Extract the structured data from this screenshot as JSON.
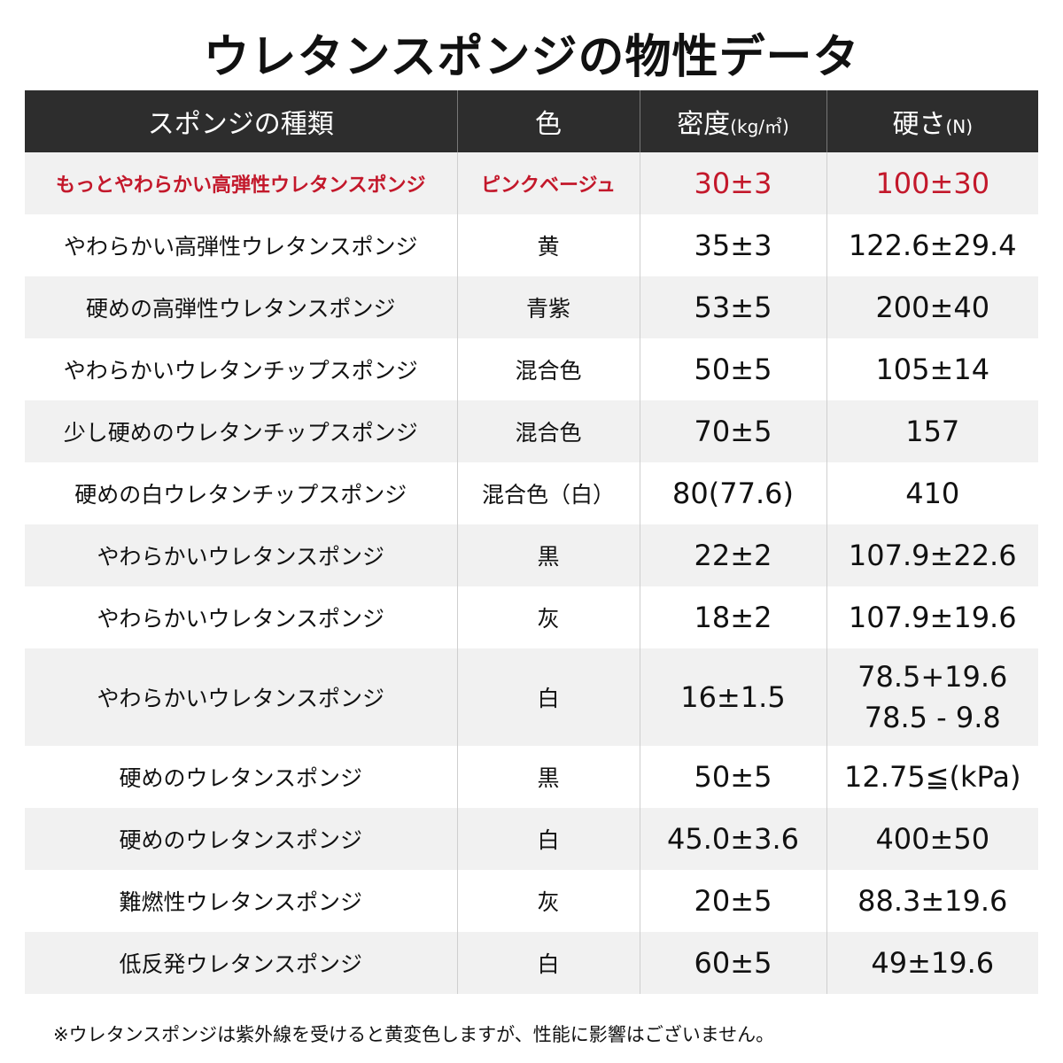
{
  "title": "ウレタンスポンジの物性データ",
  "colors": {
    "header_bg": "#2d2d2d",
    "highlight_red": "#c3182b",
    "row_shade": "#f1f1f1"
  },
  "headers": {
    "type": "スポンジの種類",
    "color": "色",
    "density": "密度",
    "density_unit": "(kg/㎥)",
    "hardness": "硬さ",
    "hardness_unit": "(N)"
  },
  "rows": [
    {
      "name": "もっとやわらかい高弾性ウレタンスポンジ",
      "color": "ピンクベージュ",
      "density": "30±3",
      "hardness": "100±30"
    },
    {
      "name": "やわらかい高弾性ウレタンスポンジ",
      "color": "黄",
      "density": "35±3",
      "hardness": "122.6±29.4"
    },
    {
      "name": "硬めの高弾性ウレタンスポンジ",
      "color": "青紫",
      "density": "53±5",
      "hardness": "200±40"
    },
    {
      "name": "やわらかいウレタンチップスポンジ",
      "color": "混合色",
      "density": "50±5",
      "hardness": "105±14"
    },
    {
      "name": "少し硬めのウレタンチップスポンジ",
      "color": "混合色",
      "density": "70±5",
      "hardness": "157"
    },
    {
      "name": "硬めの白ウレタンチップスポンジ",
      "color": "混合色（白）",
      "density": "80(77.6)",
      "hardness": "410"
    },
    {
      "name": "やわらかいウレタンスポンジ",
      "color": "黒",
      "density": "22±2",
      "hardness": "107.9±22.6"
    },
    {
      "name": "やわらかいウレタンスポンジ",
      "color": "灰",
      "density": "18±2",
      "hardness": "107.9±19.6"
    },
    {
      "name": "やわらかいウレタンスポンジ",
      "color": "白",
      "density": "16±1.5",
      "hardness": "78.5+19.6",
      "hardness_line2": "78.5 - 9.8"
    },
    {
      "name": "硬めのウレタンスポンジ",
      "color": "黒",
      "density": "50±5",
      "hardness": "12.75≦(kPa)"
    },
    {
      "name": "硬めのウレタンスポンジ",
      "color": "白",
      "density": "45.0±3.6",
      "hardness": "400±50"
    },
    {
      "name": "難燃性ウレタンスポンジ",
      "color": "灰",
      "density": "20±5",
      "hardness": "88.3±19.6"
    },
    {
      "name": "低反発ウレタンスポンジ",
      "color": "白",
      "density": "60±5",
      "hardness": "49±19.6"
    }
  ],
  "footnote": "※ウレタンスポンジは紫外線を受けると黄変色しますが、性能に影響はございません。"
}
